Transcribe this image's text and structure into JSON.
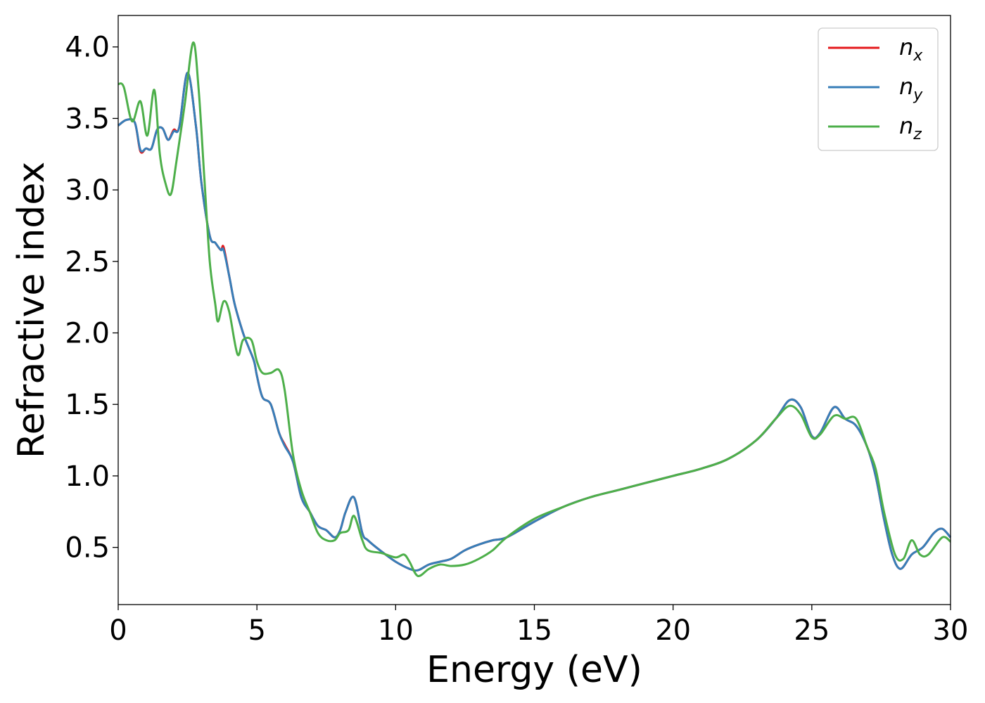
{
  "chart_data": {
    "type": "line",
    "title": "",
    "xlabel": "Energy (eV)",
    "ylabel": "Refractive index",
    "xlim": [
      0,
      30
    ],
    "ylim": [
      0.1,
      4.22
    ],
    "xticks": [
      "0",
      "5",
      "10",
      "15",
      "20",
      "25",
      "30"
    ],
    "yticks": [
      "0.5",
      "1.0",
      "1.5",
      "2.0",
      "2.5",
      "3.0",
      "3.5",
      "4.0"
    ],
    "grid": false,
    "legend_position": "top-right",
    "series": [
      {
        "name": "n_x",
        "legend_base": "n",
        "legend_sub": "x",
        "color": "#e41a1c",
        "x": [
          0,
          0.3,
          0.6,
          0.8,
          1.0,
          1.2,
          1.4,
          1.6,
          1.8,
          2.0,
          2.2,
          2.5,
          2.8,
          3.0,
          3.3,
          3.5,
          3.7,
          3.8,
          4.0,
          4.2,
          4.5,
          4.7,
          4.9,
          5.0,
          5.2,
          5.5,
          5.8,
          6.0,
          6.3,
          6.6,
          6.9,
          7.2,
          7.5,
          7.8,
          8.0,
          8.2,
          8.5,
          8.8,
          9.0,
          9.5,
          10.0,
          10.5,
          10.8,
          11.2,
          11.6,
          12.0,
          12.5,
          13.0,
          13.5,
          14.0,
          15.0,
          16.0,
          17.0,
          18.0,
          19.0,
          20.0,
          21.0,
          22.0,
          23.0,
          23.7,
          24.2,
          24.6,
          25.0,
          25.3,
          25.8,
          26.2,
          26.6,
          27.0,
          27.3,
          27.6,
          27.9,
          28.2,
          28.6,
          29.0,
          29.4,
          29.7,
          30.0
        ],
        "y": [
          3.45,
          3.49,
          3.47,
          3.27,
          3.29,
          3.29,
          3.42,
          3.43,
          3.35,
          3.42,
          3.44,
          3.82,
          3.45,
          3.05,
          2.68,
          2.63,
          2.58,
          2.6,
          2.4,
          2.2,
          2.0,
          1.9,
          1.8,
          1.7,
          1.55,
          1.5,
          1.3,
          1.22,
          1.1,
          0.85,
          0.75,
          0.65,
          0.62,
          0.57,
          0.62,
          0.75,
          0.85,
          0.6,
          0.55,
          0.47,
          0.4,
          0.35,
          0.34,
          0.38,
          0.4,
          0.42,
          0.48,
          0.52,
          0.55,
          0.57,
          0.68,
          0.78,
          0.85,
          0.9,
          0.95,
          1.0,
          1.05,
          1.12,
          1.25,
          1.4,
          1.53,
          1.48,
          1.28,
          1.3,
          1.48,
          1.4,
          1.35,
          1.2,
          1.0,
          0.7,
          0.45,
          0.35,
          0.45,
          0.5,
          0.6,
          0.63,
          0.57
        ]
      },
      {
        "name": "n_y",
        "legend_base": "n",
        "legend_sub": "y",
        "color": "#377eb8",
        "x": [
          0,
          0.3,
          0.6,
          0.8,
          1.0,
          1.2,
          1.4,
          1.6,
          1.8,
          2.0,
          2.2,
          2.5,
          2.8,
          3.0,
          3.3,
          3.5,
          3.7,
          3.8,
          4.0,
          4.2,
          4.5,
          4.7,
          4.9,
          5.0,
          5.2,
          5.5,
          5.8,
          6.0,
          6.3,
          6.6,
          6.9,
          7.2,
          7.5,
          7.8,
          8.0,
          8.2,
          8.5,
          8.8,
          9.0,
          9.5,
          10.0,
          10.5,
          10.8,
          11.2,
          11.6,
          12.0,
          12.5,
          13.0,
          13.5,
          14.0,
          15.0,
          16.0,
          17.0,
          18.0,
          19.0,
          20.0,
          21.0,
          22.0,
          23.0,
          23.7,
          24.2,
          24.6,
          25.0,
          25.3,
          25.8,
          26.2,
          26.6,
          27.0,
          27.3,
          27.6,
          27.9,
          28.2,
          28.6,
          29.0,
          29.4,
          29.7,
          30.0
        ],
        "y": [
          3.45,
          3.49,
          3.47,
          3.28,
          3.29,
          3.29,
          3.42,
          3.43,
          3.35,
          3.41,
          3.44,
          3.82,
          3.45,
          3.05,
          2.68,
          2.63,
          2.58,
          2.58,
          2.4,
          2.2,
          2.0,
          1.9,
          1.8,
          1.7,
          1.55,
          1.5,
          1.3,
          1.21,
          1.1,
          0.85,
          0.75,
          0.65,
          0.62,
          0.57,
          0.62,
          0.75,
          0.85,
          0.6,
          0.55,
          0.47,
          0.4,
          0.35,
          0.34,
          0.38,
          0.4,
          0.42,
          0.48,
          0.52,
          0.55,
          0.57,
          0.68,
          0.78,
          0.85,
          0.9,
          0.95,
          1.0,
          1.05,
          1.12,
          1.25,
          1.4,
          1.53,
          1.48,
          1.28,
          1.3,
          1.48,
          1.4,
          1.35,
          1.2,
          1.0,
          0.7,
          0.45,
          0.35,
          0.45,
          0.5,
          0.6,
          0.63,
          0.57
        ]
      },
      {
        "name": "n_z",
        "legend_base": "n",
        "legend_sub": "z",
        "color": "#4daf4a",
        "x": [
          0,
          0.2,
          0.5,
          0.8,
          1.05,
          1.3,
          1.5,
          1.7,
          1.9,
          2.1,
          2.4,
          2.7,
          2.9,
          3.1,
          3.3,
          3.5,
          3.6,
          3.8,
          4.0,
          4.3,
          4.5,
          4.8,
          5.0,
          5.2,
          5.5,
          5.8,
          6.0,
          6.3,
          6.6,
          6.9,
          7.2,
          7.5,
          7.8,
          8.0,
          8.3,
          8.5,
          8.8,
          9.0,
          9.5,
          10.0,
          10.3,
          10.5,
          10.8,
          11.2,
          11.6,
          12.0,
          12.5,
          13.0,
          13.5,
          14.0,
          15.0,
          16.0,
          17.0,
          18.0,
          19.0,
          20.0,
          21.0,
          22.0,
          23.0,
          23.7,
          24.2,
          24.6,
          25.0,
          25.3,
          25.8,
          26.2,
          26.6,
          27.0,
          27.3,
          27.6,
          28.0,
          28.3,
          28.6,
          28.9,
          29.2,
          29.7,
          30.0
        ],
        "y": [
          3.74,
          3.72,
          3.48,
          3.62,
          3.38,
          3.7,
          3.25,
          3.05,
          2.97,
          3.2,
          3.6,
          4.03,
          3.7,
          3.1,
          2.5,
          2.2,
          2.08,
          2.22,
          2.15,
          1.85,
          1.95,
          1.95,
          1.8,
          1.72,
          1.72,
          1.74,
          1.6,
          1.15,
          0.9,
          0.75,
          0.6,
          0.55,
          0.55,
          0.6,
          0.62,
          0.72,
          0.55,
          0.48,
          0.46,
          0.43,
          0.45,
          0.4,
          0.3,
          0.35,
          0.38,
          0.37,
          0.38,
          0.42,
          0.48,
          0.57,
          0.7,
          0.78,
          0.85,
          0.9,
          0.95,
          1.0,
          1.05,
          1.12,
          1.25,
          1.4,
          1.49,
          1.43,
          1.27,
          1.29,
          1.42,
          1.4,
          1.4,
          1.2,
          1.05,
          0.75,
          0.45,
          0.42,
          0.55,
          0.45,
          0.45,
          0.57,
          0.54
        ]
      }
    ]
  }
}
